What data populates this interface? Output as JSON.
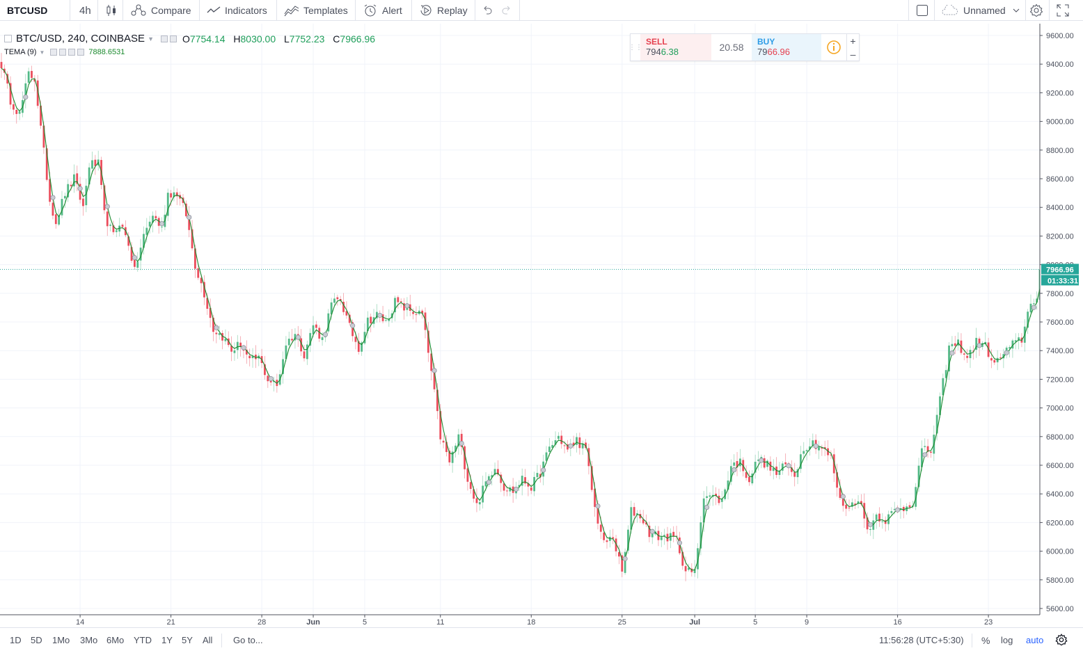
{
  "toolbar": {
    "symbol": "BTCUSD",
    "interval": "4h",
    "compare_label": "Compare",
    "indicators_label": "Indicators",
    "templates_label": "Templates",
    "alert_label": "Alert",
    "replay_label": "Replay",
    "layout_name": "Unnamed"
  },
  "legend": {
    "title": "BTC/USD, 240, COINBASE",
    "o_label": "O",
    "o_value": "7754.14",
    "h_label": "H",
    "h_value": "8030.00",
    "l_label": "L",
    "l_value": "7752.23",
    "c_label": "C",
    "c_value": "7966.96",
    "indicator_name": "TEMA (9)",
    "indicator_value": "7888.6531"
  },
  "trade": {
    "sell_label": "SELL",
    "sell_price_a": "794",
    "sell_price_b": "6.38",
    "spread": "20.58",
    "buy_label": "BUY",
    "buy_price_a": "79",
    "buy_price_b": "66.96"
  },
  "price_axis": {
    "last_price": "7966.96",
    "countdown": "01:33:31"
  },
  "bottombar": {
    "ranges": [
      "1D",
      "5D",
      "1Mo",
      "3Mo",
      "6Mo",
      "YTD",
      "1Y",
      "5Y",
      "All"
    ],
    "goto_label": "Go to...",
    "clock": "11:56:28 (UTC+5:30)",
    "percent_label": "%",
    "log_label": "log",
    "auto_label": "auto"
  },
  "colors": {
    "up": "#53b987",
    "down": "#eb4d5c",
    "tema": "#1b8a2e",
    "grid": "#f0f3fa",
    "last_price": "#26a69a"
  },
  "chart_data": {
    "type": "candlestick",
    "symbol": "BTC/USD",
    "interval": "240",
    "exchange": "COINBASE",
    "ylim": [
      5550,
      9700
    ],
    "y_ticks": [
      9600,
      9400,
      9200,
      9000,
      8800,
      8600,
      8400,
      8200,
      8000,
      7800,
      7600,
      7400,
      7200,
      7000,
      6800,
      6600,
      6400,
      6200,
      6000,
      5800,
      5600
    ],
    "x_ticks": [
      "14",
      "21",
      "28",
      "Jun",
      "5",
      "11",
      "18",
      "25",
      "Jul",
      "5",
      "9",
      "16",
      "23"
    ],
    "x_tick_bars": [
      26,
      56,
      86,
      103,
      120,
      145,
      175,
      205,
      229,
      249,
      266,
      296,
      326
    ],
    "path_keypoints": [
      [
        0,
        9400
      ],
      [
        3,
        9150
      ],
      [
        6,
        9050
      ],
      [
        9,
        9330
      ],
      [
        11,
        9300
      ],
      [
        13,
        8950
      ],
      [
        16,
        8450
      ],
      [
        18,
        8300
      ],
      [
        21,
        8500
      ],
      [
        24,
        8600
      ],
      [
        27,
        8400
      ],
      [
        29,
        8700
      ],
      [
        32,
        8700
      ],
      [
        34,
        8350
      ],
      [
        37,
        8200
      ],
      [
        39,
        8300
      ],
      [
        42,
        8150
      ],
      [
        44,
        7950
      ],
      [
        47,
        8200
      ],
      [
        50,
        8350
      ],
      [
        53,
        8250
      ],
      [
        55,
        8500
      ],
      [
        58,
        8500
      ],
      [
        61,
        8350
      ],
      [
        64,
        8000
      ],
      [
        67,
        7800
      ],
      [
        70,
        7550
      ],
      [
        73,
        7500
      ],
      [
        76,
        7400
      ],
      [
        79,
        7450
      ],
      [
        82,
        7320
      ],
      [
        85,
        7350
      ],
      [
        88,
        7200
      ],
      [
        91,
        7150
      ],
      [
        94,
        7450
      ],
      [
        97,
        7520
      ],
      [
        100,
        7380
      ],
      [
        103,
        7580
      ],
      [
        106,
        7480
      ],
      [
        109,
        7720
      ],
      [
        112,
        7760
      ],
      [
        115,
        7560
      ],
      [
        118,
        7420
      ],
      [
        121,
        7610
      ],
      [
        124,
        7650
      ],
      [
        127,
        7600
      ],
      [
        130,
        7740
      ],
      [
        133,
        7700
      ],
      [
        136,
        7670
      ],
      [
        139,
        7650
      ],
      [
        142,
        7250
      ],
      [
        145,
        6800
      ],
      [
        148,
        6620
      ],
      [
        151,
        6800
      ],
      [
        154,
        6510
      ],
      [
        157,
        6320
      ],
      [
        160,
        6480
      ],
      [
        163,
        6600
      ],
      [
        166,
        6450
      ],
      [
        169,
        6420
      ],
      [
        172,
        6500
      ],
      [
        175,
        6450
      ],
      [
        178,
        6550
      ],
      [
        181,
        6720
      ],
      [
        184,
        6800
      ],
      [
        187,
        6700
      ],
      [
        190,
        6780
      ],
      [
        193,
        6700
      ],
      [
        196,
        6300
      ],
      [
        199,
        6050
      ],
      [
        202,
        6100
      ],
      [
        205,
        5850
      ],
      [
        208,
        6280
      ],
      [
        211,
        6250
      ],
      [
        214,
        6130
      ],
      [
        217,
        6100
      ],
      [
        220,
        6100
      ],
      [
        223,
        6080
      ],
      [
        226,
        5860
      ],
      [
        229,
        5850
      ],
      [
        232,
        6400
      ],
      [
        235,
        6380
      ],
      [
        238,
        6350
      ],
      [
        241,
        6600
      ],
      [
        244,
        6620
      ],
      [
        247,
        6500
      ],
      [
        250,
        6650
      ],
      [
        253,
        6600
      ],
      [
        256,
        6540
      ],
      [
        259,
        6600
      ],
      [
        262,
        6540
      ],
      [
        265,
        6730
      ],
      [
        268,
        6760
      ],
      [
        271,
        6720
      ],
      [
        274,
        6650
      ],
      [
        277,
        6350
      ],
      [
        280,
        6300
      ],
      [
        283,
        6380
      ],
      [
        286,
        6150
      ],
      [
        289,
        6250
      ],
      [
        292,
        6220
      ],
      [
        295,
        6280
      ],
      [
        298,
        6300
      ],
      [
        301,
        6350
      ],
      [
        304,
        6700
      ],
      [
        307,
        6700
      ],
      [
        310,
        7050
      ],
      [
        313,
        7420
      ],
      [
        316,
        7450
      ],
      [
        319,
        7350
      ],
      [
        322,
        7460
      ],
      [
        325,
        7430
      ],
      [
        328,
        7300
      ],
      [
        331,
        7380
      ],
      [
        334,
        7440
      ],
      [
        337,
        7480
      ],
      [
        340,
        7750
      ],
      [
        342,
        7760
      ],
      [
        343,
        7967
      ]
    ]
  }
}
